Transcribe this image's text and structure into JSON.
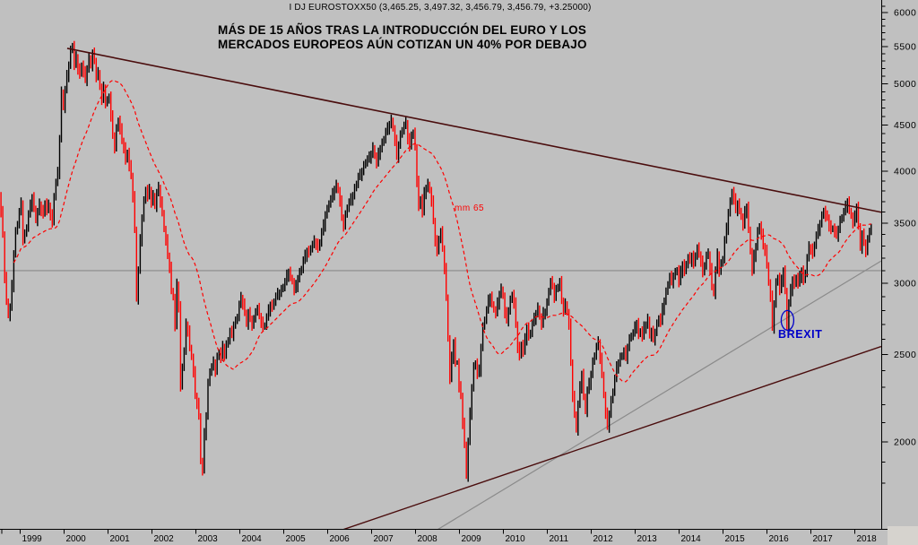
{
  "window": {
    "background": "#c0c0c0"
  },
  "header": {
    "title": "I DJ EUROSTOXX50 (3,465.25, 3,497.32, 3,456.79, 3,456.79, +3.25000)"
  },
  "annotation": {
    "line1": "MÁS DE 15 AÑOS TRAS LA INTRODUCCIÓN DEL EURO Y LOS",
    "line2": "MERCADOS EUROPEOS AÚN COTIZAN UN 40% POR DEBAJO"
  },
  "colors": {
    "background": "#c0c0c0",
    "bar_up": "#000000",
    "bar_down": "#ff0000",
    "moving_average": "#ff0000",
    "trendline_dark": "#4a0d0d",
    "gray_line": "#8a8a8a",
    "axis": "#000000",
    "brexit_blue": "#0000c8",
    "corner_fill": "#d6d3ce"
  },
  "chart_data": {
    "type": "bar",
    "style": "weekly-ohlc-bars",
    "title": "I DJ EUROSTOXX50 (3,465.25, 3,497.32, 3,456.79, 3,456.79, +3.25000)",
    "x_axis": {
      "label": "",
      "years": [
        1999,
        2000,
        2001,
        2002,
        2003,
        2004,
        2005,
        2006,
        2007,
        2008,
        2009,
        2010,
        2011,
        2012,
        2013,
        2014,
        2015,
        2016,
        2017,
        2018
      ]
    },
    "y_axis": {
      "scale": "log",
      "major_labels": [
        6000,
        5500,
        5000,
        4500,
        4000,
        3500,
        3000,
        2500,
        2000
      ],
      "minor_step": 100,
      "range": [
        1760,
        6200
      ]
    },
    "grid": false,
    "legend": "none",
    "series_start_year": 1998.5417,
    "series_step_years": 0.0416667,
    "closes": [
      3750,
      3600,
      3400,
      3050,
      2870,
      2760,
      2820,
      2980,
      3240,
      3420,
      3500,
      3600,
      3680,
      3360,
      3400,
      3470,
      3580,
      3660,
      3740,
      3640,
      3520,
      3600,
      3670,
      3620,
      3580,
      3690,
      3620,
      3660,
      3580,
      3500,
      3760,
      3880,
      3980,
      4350,
      4900,
      4700,
      4920,
      5100,
      5250,
      5440,
      5520,
      5250,
      5350,
      5200,
      5120,
      5250,
      5150,
      5050,
      5200,
      5350,
      5230,
      5400,
      5300,
      5100,
      5150,
      4950,
      4800,
      4950,
      4770,
      4780,
      4850,
      4600,
      4380,
      4250,
      4450,
      4560,
      4450,
      4320,
      4250,
      4110,
      4200,
      4050,
      3950,
      3750,
      3450,
      2880,
      3100,
      3350,
      3550,
      3700,
      3820,
      3750,
      3810,
      3700,
      3760,
      3650,
      3780,
      3830,
      3700,
      3600,
      3440,
      3350,
      3220,
      3130,
      2950,
      2890,
      2690,
      2990,
      2830,
      2300,
      2430,
      2520,
      2700,
      2660,
      2550,
      2480,
      2390,
      2250,
      2210,
      2140,
      1900,
      1860,
      2040,
      2140,
      2320,
      2400,
      2420,
      2450,
      2400,
      2480,
      2520,
      2480,
      2550,
      2500,
      2560,
      2600,
      2650,
      2630,
      2700,
      2720,
      2760,
      2840,
      2890,
      2850,
      2790,
      2700,
      2780,
      2740,
      2700,
      2730,
      2800,
      2810,
      2760,
      2720,
      2680,
      2700,
      2750,
      2800,
      2840,
      2820,
      2870,
      2900,
      2920,
      2930,
      2950,
      2980,
      3010,
      3060,
      3090,
      3050,
      3010,
      2950,
      2980,
      3040,
      3080,
      3120,
      3180,
      3220,
      3260,
      3240,
      3290,
      3310,
      3340,
      3320,
      3280,
      3340,
      3420,
      3480,
      3580,
      3620,
      3690,
      3720,
      3770,
      3820,
      3860,
      3800,
      3700,
      3550,
      3480,
      3570,
      3650,
      3690,
      3720,
      3760,
      3820,
      3880,
      3940,
      3960,
      4000,
      4050,
      4100,
      4120,
      4140,
      4180,
      4250,
      4150,
      4080,
      4180,
      4240,
      4290,
      4350,
      4420,
      4460,
      4510,
      4560,
      4450,
      4320,
      4150,
      4280,
      4380,
      4450,
      4490,
      4520,
      4350,
      4250,
      4400,
      4400,
      4250,
      3900,
      3650,
      3730,
      3600,
      3780,
      3830,
      3870,
      3800,
      3700,
      3520,
      3350,
      3250,
      3370,
      3420,
      3280,
      3120,
      2900,
      2600,
      2350,
      2480,
      2580,
      2450,
      2450,
      2300,
      2250,
      2100,
      1990,
      1830,
      2000,
      2150,
      2300,
      2420,
      2450,
      2380,
      2400,
      2550,
      2680,
      2740,
      2800,
      2870,
      2900,
      2850,
      2800,
      2780,
      2850,
      2920,
      2960,
      2900,
      2780,
      2730,
      2800,
      2870,
      2920,
      2850,
      2700,
      2550,
      2490,
      2570,
      2520,
      2600,
      2680,
      2620,
      2650,
      2710,
      2740,
      2780,
      2820,
      2750,
      2700,
      2780,
      2790,
      2850,
      2950,
      3010,
      2980,
      2900,
      2950,
      2980,
      3010,
      2870,
      2800,
      2850,
      2780,
      2700,
      2450,
      2250,
      2150,
      2060,
      2200,
      2300,
      2380,
      2250,
      2160,
      2280,
      2320,
      2380,
      2450,
      2500,
      2550,
      2580,
      2480,
      2380,
      2250,
      2150,
      2080,
      2150,
      2220,
      2280,
      2350,
      2420,
      2450,
      2480,
      2500,
      2520,
      2480,
      2550,
      2600,
      2630,
      2640,
      2680,
      2710,
      2630,
      2660,
      2620,
      2680,
      2700,
      2740,
      2620,
      2650,
      2600,
      2650,
      2700,
      2750,
      2720,
      2810,
      2870,
      2930,
      3000,
      3050,
      3010,
      3060,
      3080,
      3110,
      3010,
      3090,
      3150,
      3090,
      3160,
      3200,
      3180,
      3220,
      3150,
      3230,
      3280,
      3230,
      3180,
      3080,
      3150,
      3220,
      3230,
      3120,
      2980,
      2920,
      3100,
      3230,
      3100,
      3150,
      3200,
      3350,
      3450,
      3600,
      3690,
      3800,
      3720,
      3620,
      3680,
      3620,
      3550,
      3480,
      3600,
      3650,
      3450,
      3250,
      3100,
      3220,
      3300,
      3420,
      3480,
      3400,
      3300,
      3270,
      3150,
      3000,
      2900,
      2680,
      2850,
      3000,
      3050,
      2950,
      3020,
      3100,
      2950,
      2680,
      2850,
      2950,
      3030,
      2990,
      3050,
      3000,
      3050,
      3100,
      3020,
      3090,
      3200,
      3290,
      3280,
      3230,
      3320,
      3390,
      3440,
      3500,
      3560,
      3620,
      3560,
      3550,
      3480,
      3440,
      3460,
      3420,
      3390,
      3450,
      3520,
      3560,
      3600,
      3650,
      3700,
      3620,
      3560,
      3500,
      3560,
      3650,
      3480,
      3280,
      3400,
      3330,
      3260,
      3350,
      3440,
      3457
    ],
    "moving_average": {
      "label": "mm 65",
      "window_points": 30,
      "style": "dashed",
      "color": "#ff0000"
    },
    "trendlines": [
      {
        "name": "upper-resistance",
        "color": "#4a0d0d",
        "width": 1.6,
        "from": {
          "year": 2000.09,
          "price": 5475
        },
        "to": {
          "year": 2018.6,
          "price": 3600
        }
      },
      {
        "name": "lower-support",
        "color": "#4a0d0d",
        "width": 1.4,
        "from": {
          "year": 2005.31,
          "price": 1535
        },
        "to": {
          "year": 2018.6,
          "price": 2553
        }
      },
      {
        "name": "gray-ascending",
        "color": "#8a8a8a",
        "width": 1.2,
        "from": {
          "year": 2007.92,
          "price": 1535
        },
        "to": {
          "year": 2018.6,
          "price": 3178
        }
      },
      {
        "name": "gray-horizontal",
        "color": "#8a8a8a",
        "width": 1.2,
        "from": {
          "year": 1998.5,
          "price": 3100
        },
        "to": {
          "year": 2018.6,
          "price": 3100
        }
      }
    ],
    "annotations": {
      "brexit": {
        "label": "BREXIT",
        "year": 2016.47,
        "price": 2730,
        "ellipse_rx": 7,
        "ellipse_ry": 11,
        "color": "#0000c8"
      }
    }
  }
}
